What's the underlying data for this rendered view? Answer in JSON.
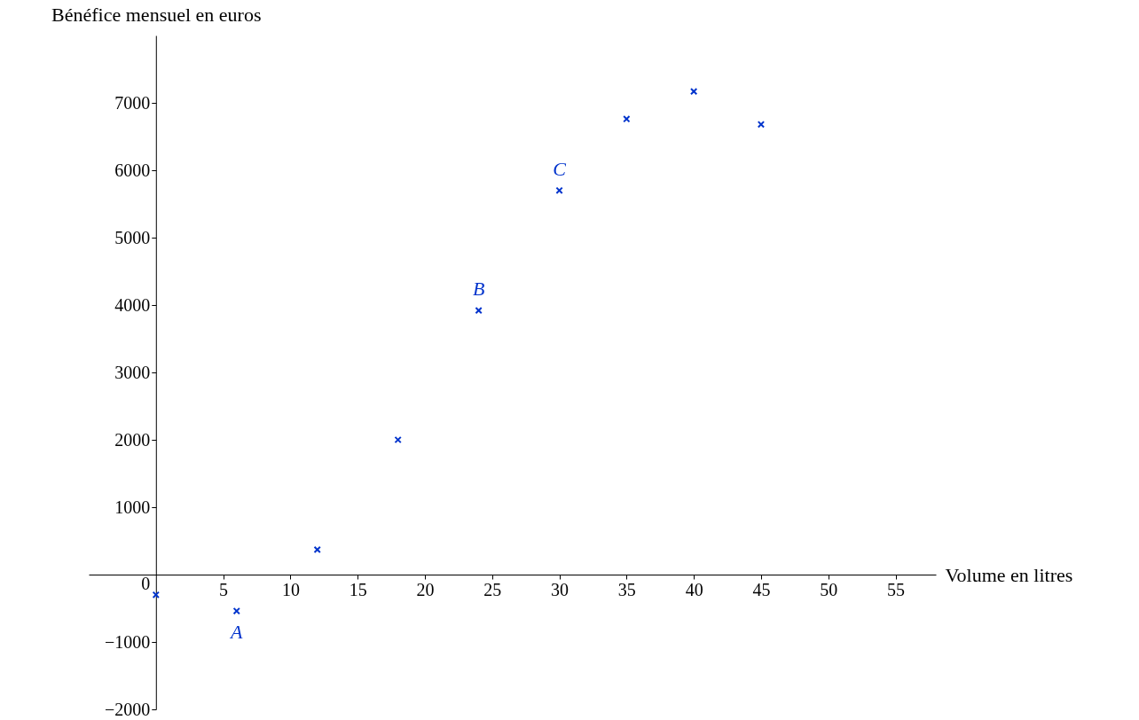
{
  "chart_data": {
    "type": "scatter",
    "xlabel": "Volume en litres",
    "ylabel": "Bénéfice mensuel en euros",
    "x": [
      0,
      6,
      12,
      18,
      24,
      30,
      35,
      40,
      45
    ],
    "series": [
      {
        "color": "#0033cc",
        "values": [
          -300,
          -540,
          370,
          2000,
          3920,
          5700,
          6760,
          7170,
          6680
        ]
      }
    ],
    "xlim": [
      -5,
      58
    ],
    "ylim": [
      -2000,
      8000
    ],
    "xticks": [
      5,
      10,
      15,
      20,
      25,
      30,
      35,
      40,
      45,
      50,
      55
    ],
    "yticks": [
      -2000,
      -1000,
      0,
      1000,
      2000,
      3000,
      4000,
      5000,
      6000,
      7000
    ],
    "annotations": [
      {
        "text": "A",
        "x": 6,
        "y": -540
      },
      {
        "text": "B",
        "x": 24,
        "y": 3920
      },
      {
        "text": "C",
        "x": 30,
        "y": 5700
      }
    ],
    "marker": "cross",
    "grid": false
  }
}
